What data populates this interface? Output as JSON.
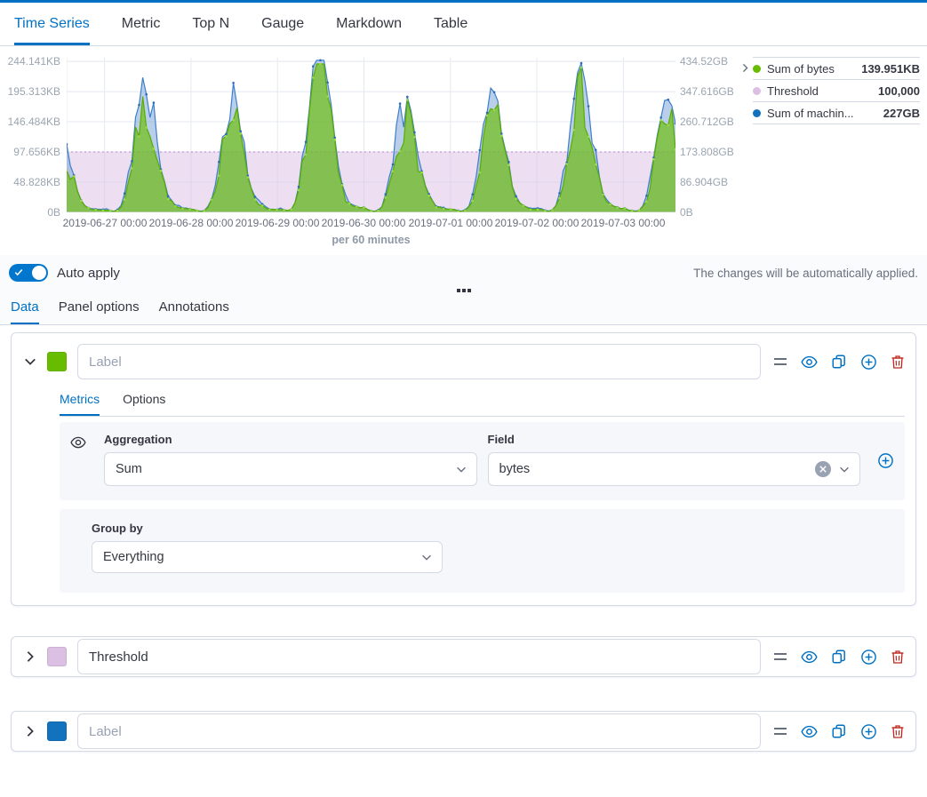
{
  "top_tabs": {
    "items": [
      {
        "label": "Time Series",
        "active": true
      },
      {
        "label": "Metric",
        "active": false
      },
      {
        "label": "Top N",
        "active": false
      },
      {
        "label": "Gauge",
        "active": false
      },
      {
        "label": "Markdown",
        "active": false
      },
      {
        "label": "Table",
        "active": false
      }
    ]
  },
  "chart": {
    "per_label": "per 60 minutes",
    "left_axis": [
      "244.141KB",
      "195.313KB",
      "146.484KB",
      "97.656KB",
      "48.828KB",
      "0B"
    ],
    "right_axis": [
      "434.52GB",
      "347.616GB",
      "260.712GB",
      "173.808GB",
      "86.904GB",
      "0B"
    ],
    "x_axis": [
      "2019-06-27 00:00",
      "2019-06-28 00:00",
      "2019-06-29 00:00",
      "2019-06-30 00:00",
      "2019-07-01 00:00",
      "2019-07-02 00:00",
      "2019-07-03 00:00"
    ],
    "legend": {
      "items": [
        {
          "label": "Sum of bytes",
          "value": "139.951KB",
          "color": "#68BC00"
        },
        {
          "label": "Threshold",
          "value": "100,000",
          "color": "#DCC0E4"
        },
        {
          "label": "Sum of machin...",
          "value": "227GB",
          "color": "#1272BE"
        }
      ]
    },
    "chart_data": {
      "type": "area",
      "interval": "per 60 minutes",
      "x_tick_labels": [
        "2019-06-27 00:00",
        "2019-06-28 00:00",
        "2019-06-29 00:00",
        "2019-06-30 00:00",
        "2019-07-01 00:00",
        "2019-07-02 00:00",
        "2019-07-03 00:00"
      ],
      "left_axis_ticks_kb": [
        244.141,
        195.313,
        146.484,
        97.656,
        48.828,
        0
      ],
      "left_axis_tick_labels": [
        "244.141KB",
        "195.313KB",
        "146.484KB",
        "97.656KB",
        "48.828KB",
        "0B"
      ],
      "right_axis_tick_labels": [
        "434.52GB",
        "347.616GB",
        "260.712GB",
        "173.808GB",
        "86.904GB",
        "0B"
      ],
      "ylim_left_kb": [
        0,
        250
      ],
      "threshold": {
        "name": "Threshold",
        "value_bytes": 100000,
        "kb": 97.656,
        "color": "#DCC0E4",
        "display": "100,000"
      },
      "series": [
        {
          "name": "Sum of bytes",
          "axis": "left",
          "color": "#68BC00",
          "current": "139.951KB",
          "day_peaks_kb": [
            115,
            160,
            150,
            232,
            148,
            152,
            188,
            150
          ]
        },
        {
          "name": "Sum of machin...",
          "axis": "right",
          "color": "#1272BE",
          "current": "227GB",
          "day_peaks_kb": [
            138,
            205,
            172,
            246,
            168,
            172,
            198,
            168
          ]
        }
      ],
      "hour_profile": [
        0.03,
        0.02,
        0.01,
        0.01,
        0.03,
        0.08,
        0.2,
        0.38,
        0.58,
        0.78,
        0.92,
        1.0,
        0.96,
        0.84,
        0.66,
        0.48,
        0.32,
        0.2,
        0.12,
        0.07,
        0.05,
        0.04,
        0.03,
        0.03
      ]
    }
  },
  "auto_apply": {
    "label": "Auto apply",
    "enabled": true,
    "hint": "The changes will be automatically applied."
  },
  "editor_tabs": {
    "items": [
      {
        "label": "Data",
        "active": true
      },
      {
        "label": "Panel options",
        "active": false
      },
      {
        "label": "Annotations",
        "active": false
      }
    ]
  },
  "series_editor": {
    "cards": [
      {
        "color": "#68BC00",
        "label_value": "",
        "label_placeholder": "Label",
        "expanded": true,
        "tabs": {
          "items": [
            {
              "label": "Metrics",
              "active": true
            },
            {
              "label": "Options",
              "active": false
            }
          ]
        },
        "metric": {
          "aggregation_label": "Aggregation",
          "aggregation_value": "Sum",
          "field_label": "Field",
          "field_value": "bytes"
        },
        "group_by": {
          "label": "Group by",
          "value": "Everything"
        }
      },
      {
        "color": "#DCC0E4",
        "label_value": "Threshold",
        "label_placeholder": "Label",
        "expanded": false
      },
      {
        "color": "#1272BE",
        "label_value": "",
        "label_placeholder": "Label",
        "expanded": false
      }
    ]
  }
}
